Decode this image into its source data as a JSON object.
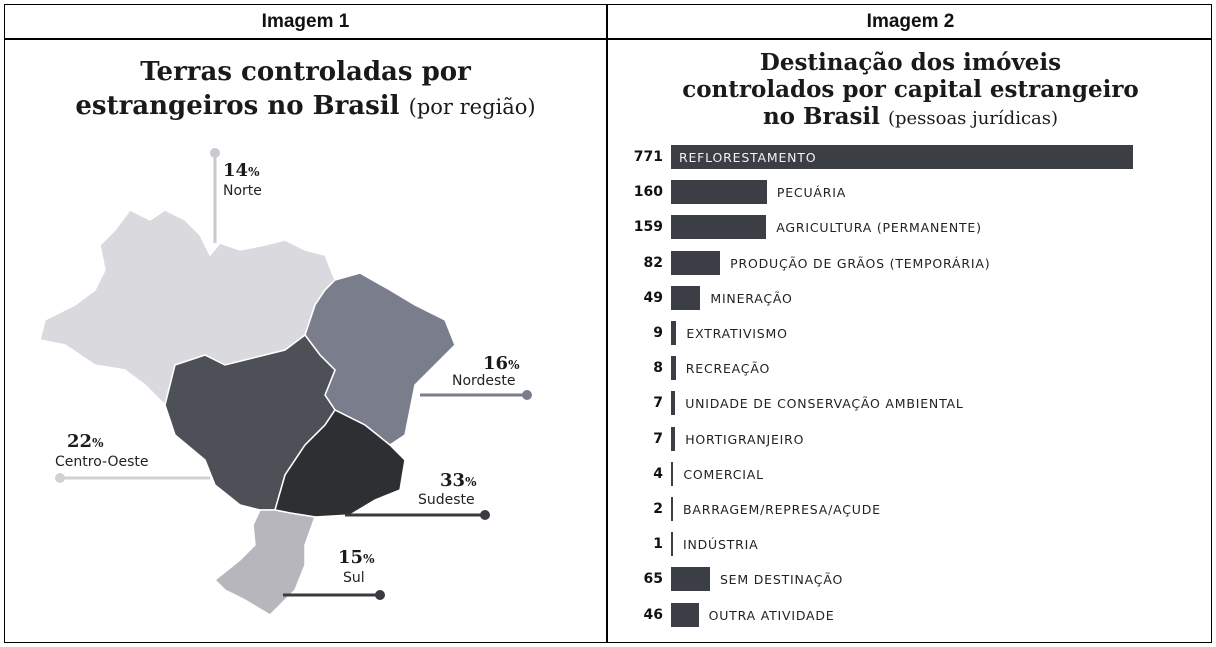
{
  "panels": {
    "left_header": "Imagem 1",
    "right_header": "Imagem 2"
  },
  "map": {
    "title_line1": "Terras controladas por",
    "title_line2_bold": "estrangeiros no Brasil",
    "title_line2_sub": "(por região)",
    "regions": [
      {
        "name": "Norte",
        "pct": "14",
        "color": "#d9d9de"
      },
      {
        "name": "Nordeste",
        "pct": "16",
        "color": "#7a7e8c"
      },
      {
        "name": "Centro-Oeste",
        "pct": "22",
        "color": "#4e5058"
      },
      {
        "name": "Sudeste",
        "pct": "33",
        "color": "#2e2f33"
      },
      {
        "name": "Sul",
        "pct": "15",
        "color": "#b6b6bc"
      }
    ],
    "pct_sign": "%"
  },
  "chart_data": {
    "type": "bar",
    "title_line1": "Destinação dos imóveis",
    "title_line2": "controlados por capital estrangeiro",
    "title_line3_bold": "no Brasil",
    "title_line3_sub": "(pessoas jurídicas)",
    "categories": [
      "REFLORESTAMENTO",
      "PECUÁRIA",
      "AGRICULTURA (PERMANENTE)",
      "PRODUÇÃO DE GRÃOS (TEMPORÁRIA)",
      "MINERAÇÃO",
      "EXTRATIVISMO",
      "RECREAÇÃO",
      "UNIDADE DE CONSERVAÇÃO AMBIENTAL",
      "HORTIGRANJEIRO",
      "COMERCIAL",
      "BARRAGEM/REPRESA/AÇUDE",
      "INDÚSTRIA",
      "SEM DESTINAÇÃO",
      "OUTRA ATIVIDADE"
    ],
    "values": [
      771,
      160,
      159,
      82,
      49,
      9,
      8,
      7,
      7,
      4,
      2,
      1,
      65,
      46
    ],
    "bar_color": "#3b3e44"
  }
}
